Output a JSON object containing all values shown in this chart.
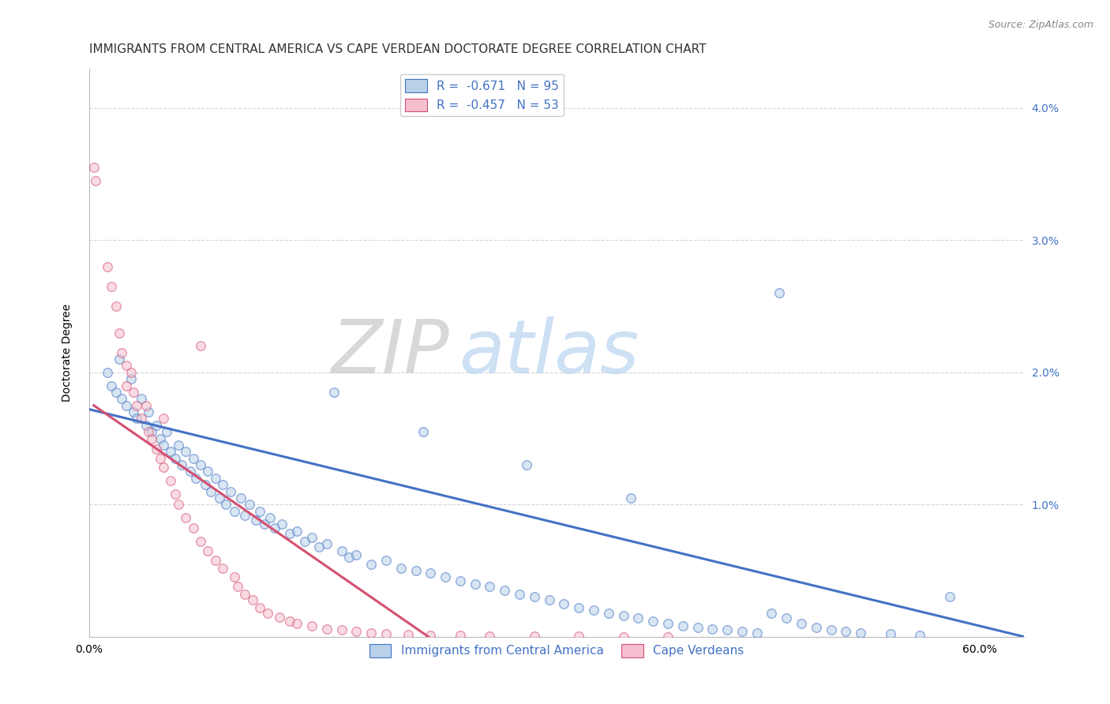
{
  "title": "IMMIGRANTS FROM CENTRAL AMERICA VS CAPE VERDEAN DOCTORATE DEGREE CORRELATION CHART",
  "source": "Source: ZipAtlas.com",
  "ylabel": "Doctorate Degree",
  "xlim": [
    0.0,
    63.0
  ],
  "ylim": [
    0.0,
    4.3
  ],
  "yticks": [
    0.0,
    1.0,
    2.0,
    3.0,
    4.0
  ],
  "ytick_labels": [
    "",
    "1.0%",
    "2.0%",
    "3.0%",
    "4.0%"
  ],
  "xticks": [
    0.0,
    10.0,
    20.0,
    30.0,
    40.0,
    50.0,
    60.0
  ],
  "xtick_labels": [
    "0.0%",
    "",
    "",
    "",
    "",
    "",
    "60.0%"
  ],
  "legend_blue_label": "R =  -0.671   N = 95",
  "legend_pink_label": "R =  -0.457   N = 53",
  "legend_bottom_blue": "Immigrants from Central America",
  "legend_bottom_pink": "Cape Verdeans",
  "watermark_zip": "ZIP",
  "watermark_atlas": "atlas",
  "blue_color": "#b8d0e8",
  "pink_color": "#f5bfcf",
  "blue_line_color": "#4472c4",
  "pink_line_color": "#d45070",
  "blue_scatter_x": [
    1.2,
    1.5,
    1.8,
    2.0,
    2.2,
    2.5,
    2.8,
    3.0,
    3.2,
    3.5,
    3.8,
    4.0,
    4.2,
    4.5,
    4.8,
    5.0,
    5.2,
    5.5,
    5.8,
    6.0,
    6.2,
    6.5,
    6.8,
    7.0,
    7.2,
    7.5,
    7.8,
    8.0,
    8.2,
    8.5,
    8.8,
    9.0,
    9.2,
    9.5,
    9.8,
    10.2,
    10.5,
    10.8,
    11.2,
    11.5,
    11.8,
    12.2,
    12.5,
    13.0,
    13.5,
    14.0,
    14.5,
    15.0,
    15.5,
    16.0,
    17.0,
    17.5,
    18.0,
    19.0,
    20.0,
    21.0,
    22.0,
    23.0,
    24.0,
    25.0,
    26.0,
    27.0,
    28.0,
    29.0,
    30.0,
    31.0,
    32.0,
    33.0,
    34.0,
    35.0,
    36.0,
    37.0,
    38.0,
    39.0,
    40.0,
    41.0,
    42.0,
    43.0,
    44.0,
    45.0,
    46.0,
    47.0,
    48.0,
    49.0,
    50.0,
    51.0,
    52.0,
    54.0,
    56.0,
    58.0,
    46.5,
    36.5,
    29.5,
    22.5,
    16.5
  ],
  "blue_scatter_y": [
    2.0,
    1.9,
    1.85,
    2.1,
    1.8,
    1.75,
    1.95,
    1.7,
    1.65,
    1.8,
    1.6,
    1.7,
    1.55,
    1.6,
    1.5,
    1.45,
    1.55,
    1.4,
    1.35,
    1.45,
    1.3,
    1.4,
    1.25,
    1.35,
    1.2,
    1.3,
    1.15,
    1.25,
    1.1,
    1.2,
    1.05,
    1.15,
    1.0,
    1.1,
    0.95,
    1.05,
    0.92,
    1.0,
    0.88,
    0.95,
    0.85,
    0.9,
    0.82,
    0.85,
    0.78,
    0.8,
    0.72,
    0.75,
    0.68,
    0.7,
    0.65,
    0.6,
    0.62,
    0.55,
    0.58,
    0.52,
    0.5,
    0.48,
    0.45,
    0.42,
    0.4,
    0.38,
    0.35,
    0.32,
    0.3,
    0.28,
    0.25,
    0.22,
    0.2,
    0.18,
    0.16,
    0.14,
    0.12,
    0.1,
    0.08,
    0.07,
    0.06,
    0.05,
    0.04,
    0.03,
    0.18,
    0.14,
    0.1,
    0.07,
    0.05,
    0.04,
    0.03,
    0.02,
    0.01,
    0.3,
    2.6,
    1.05,
    1.3,
    1.55,
    1.85
  ],
  "pink_scatter_x": [
    0.3,
    0.4,
    1.2,
    1.5,
    1.8,
    2.0,
    2.2,
    2.5,
    2.8,
    3.0,
    3.2,
    3.5,
    3.8,
    4.0,
    4.2,
    4.5,
    4.8,
    5.0,
    5.5,
    5.8,
    6.0,
    6.5,
    7.0,
    7.5,
    8.0,
    8.5,
    9.0,
    9.8,
    10.0,
    10.5,
    11.0,
    11.5,
    12.0,
    12.8,
    13.5,
    14.0,
    15.0,
    16.0,
    17.0,
    18.0,
    19.0,
    20.0,
    21.5,
    23.0,
    25.0,
    27.0,
    30.0,
    33.0,
    36.0,
    39.0,
    7.5,
    2.5,
    5.0
  ],
  "pink_scatter_y": [
    3.55,
    3.45,
    2.8,
    2.65,
    2.5,
    2.3,
    2.15,
    2.05,
    2.0,
    1.85,
    1.75,
    1.65,
    1.75,
    1.55,
    1.5,
    1.42,
    1.35,
    1.28,
    1.18,
    1.08,
    1.0,
    0.9,
    0.82,
    0.72,
    0.65,
    0.58,
    0.52,
    0.45,
    0.38,
    0.32,
    0.28,
    0.22,
    0.18,
    0.15,
    0.12,
    0.1,
    0.08,
    0.06,
    0.05,
    0.04,
    0.03,
    0.02,
    0.015,
    0.01,
    0.008,
    0.006,
    0.003,
    0.002,
    0.001,
    0.001,
    2.2,
    1.9,
    1.65
  ],
  "blue_line_x": [
    0.0,
    63.0
  ],
  "blue_line_y": [
    1.72,
    0.0
  ],
  "pink_line_x": [
    0.3,
    23.5
  ],
  "pink_line_y": [
    1.75,
    -0.05
  ],
  "background_color": "#ffffff",
  "grid_color": "#cccccc",
  "title_fontsize": 11,
  "axis_label_fontsize": 10,
  "tick_fontsize": 10,
  "legend_fontsize": 11,
  "scatter_size": 70,
  "scatter_alpha": 0.55,
  "scatter_linewidth": 1.0
}
